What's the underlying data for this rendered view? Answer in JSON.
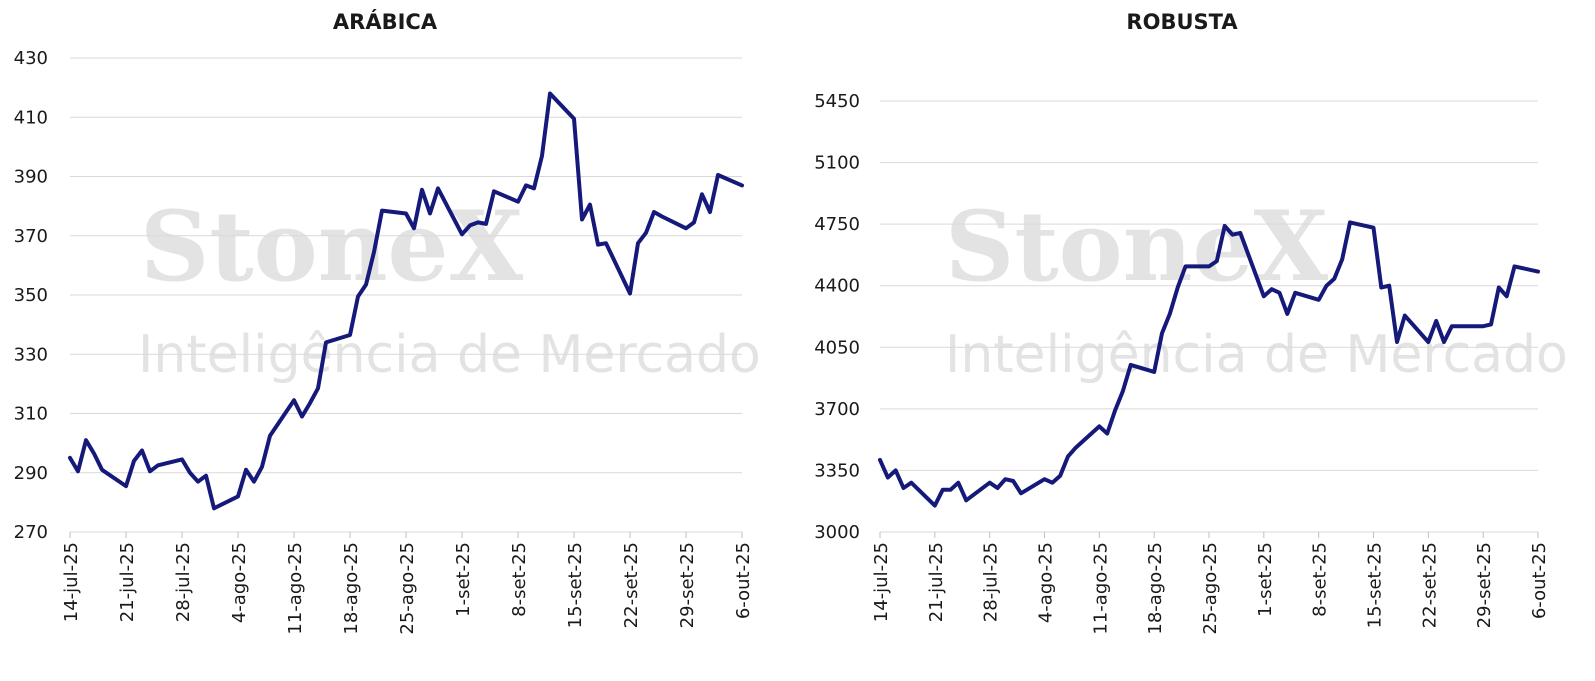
{
  "watermark": {
    "brand": "StoneX",
    "tagline": "Inteligência de Mercado"
  },
  "chart_data": [
    {
      "type": "line",
      "title": "ARÁBICA",
      "xlabel": "",
      "ylabel": "",
      "ylim": [
        270,
        430
      ],
      "yticks": [
        270,
        290,
        310,
        330,
        350,
        370,
        390,
        410,
        430
      ],
      "grid": true,
      "legend": "none",
      "color": "#14197a",
      "x_tick_labels": [
        "14-jul-25",
        "21-jul-25",
        "28-jul-25",
        "4-ago-25",
        "11-ago-25",
        "18-ago-25",
        "25-ago-25",
        "1-set-25",
        "8-set-25",
        "15-set-25",
        "22-set-25",
        "29-set-25",
        "6-out-25"
      ],
      "series": [
        {
          "x": [
            "2025-07-14",
            "2025-07-15",
            "2025-07-16",
            "2025-07-17",
            "2025-07-18",
            "2025-07-21",
            "2025-07-22",
            "2025-07-23",
            "2025-07-24",
            "2025-07-25",
            "2025-07-28",
            "2025-07-29",
            "2025-07-30",
            "2025-07-31",
            "2025-08-01",
            "2025-08-04",
            "2025-08-05",
            "2025-08-06",
            "2025-08-07",
            "2025-08-08",
            "2025-08-11",
            "2025-08-12",
            "2025-08-13",
            "2025-08-14",
            "2025-08-15",
            "2025-08-18",
            "2025-08-19",
            "2025-08-20",
            "2025-08-21",
            "2025-08-22",
            "2025-08-25",
            "2025-08-26",
            "2025-08-27",
            "2025-08-28",
            "2025-08-29",
            "2025-09-01",
            "2025-09-02",
            "2025-09-03",
            "2025-09-04",
            "2025-09-05",
            "2025-09-08",
            "2025-09-09",
            "2025-09-10",
            "2025-09-11",
            "2025-09-12",
            "2025-09-15",
            "2025-09-16",
            "2025-09-17",
            "2025-09-18",
            "2025-09-19",
            "2025-09-22",
            "2025-09-23",
            "2025-09-24",
            "2025-09-25",
            "2025-09-26",
            "2025-09-29",
            "2025-09-30",
            "2025-10-01",
            "2025-10-02",
            "2025-10-03",
            "2025-10-06"
          ],
          "values": [
            295,
            290.5,
            301,
            296.5,
            291,
            285.5,
            294,
            297.5,
            290.5,
            292.5,
            294.5,
            290,
            287,
            289,
            278,
            282,
            291,
            287,
            292,
            302.5,
            314.5,
            309,
            313.5,
            318.5,
            334,
            336.5,
            349.5,
            353.5,
            364.5,
            378.5,
            377.5,
            372.5,
            385.5,
            377.5,
            386,
            370.5,
            373.5,
            374.5,
            374,
            385,
            381.5,
            387,
            386,
            397,
            418,
            409.5,
            375.5,
            380.5,
            367,
            367.5,
            350.5,
            367.5,
            371,
            378,
            376.5,
            372.5,
            374.5,
            384,
            378,
            390.5,
            387
          ]
        }
      ]
    },
    {
      "type": "line",
      "title": "ROBUSTA",
      "xlabel": "",
      "ylabel": "",
      "ylim": [
        3000,
        5700
      ],
      "yticks": [
        3000,
        3350,
        3700,
        4050,
        4400,
        4750,
        5100,
        5450
      ],
      "grid": true,
      "legend": "none",
      "color": "#14197a",
      "x_tick_labels": [
        "14-jul-25",
        "21-jul-25",
        "28-jul-25",
        "4-ago-25",
        "11-ago-25",
        "18-ago-25",
        "25-ago-25",
        "1-set-25",
        "8-set-25",
        "15-set-25",
        "22-set-25",
        "29-set-25",
        "6-out-25"
      ],
      "series": [
        {
          "x": [
            "2025-07-14",
            "2025-07-15",
            "2025-07-16",
            "2025-07-17",
            "2025-07-18",
            "2025-07-21",
            "2025-07-22",
            "2025-07-23",
            "2025-07-24",
            "2025-07-25",
            "2025-07-28",
            "2025-07-29",
            "2025-07-30",
            "2025-07-31",
            "2025-08-01",
            "2025-08-04",
            "2025-08-05",
            "2025-08-06",
            "2025-08-07",
            "2025-08-08",
            "2025-08-11",
            "2025-08-12",
            "2025-08-13",
            "2025-08-14",
            "2025-08-15",
            "2025-08-18",
            "2025-08-19",
            "2025-08-20",
            "2025-08-21",
            "2025-08-22",
            "2025-08-25",
            "2025-08-26",
            "2025-08-27",
            "2025-08-28",
            "2025-08-29",
            "2025-09-01",
            "2025-09-02",
            "2025-09-03",
            "2025-09-04",
            "2025-09-05",
            "2025-09-08",
            "2025-09-09",
            "2025-09-10",
            "2025-09-11",
            "2025-09-12",
            "2025-09-15",
            "2025-09-16",
            "2025-09-17",
            "2025-09-18",
            "2025-09-19",
            "2025-09-22",
            "2025-09-23",
            "2025-09-24",
            "2025-09-25",
            "2025-09-26",
            "2025-09-29",
            "2025-09-30",
            "2025-10-01",
            "2025-10-02",
            "2025-10-03",
            "2025-10-06"
          ],
          "values": [
            3410,
            3310,
            3350,
            3250,
            3280,
            3150,
            3240,
            3240,
            3280,
            3180,
            3280,
            3250,
            3300,
            3290,
            3220,
            3300,
            3280,
            3320,
            3430,
            3480,
            3600,
            3560,
            3690,
            3800,
            3950,
            3910,
            4130,
            4240,
            4390,
            4510,
            4510,
            4540,
            4740,
            4690,
            4700,
            4340,
            4380,
            4360,
            4240,
            4360,
            4320,
            4400,
            4440,
            4550,
            4760,
            4730,
            4390,
            4400,
            4080,
            4230,
            4080,
            4200,
            4080,
            4170,
            4170,
            4170,
            4180,
            4390,
            4340,
            4510,
            4480
          ]
        }
      ]
    }
  ]
}
